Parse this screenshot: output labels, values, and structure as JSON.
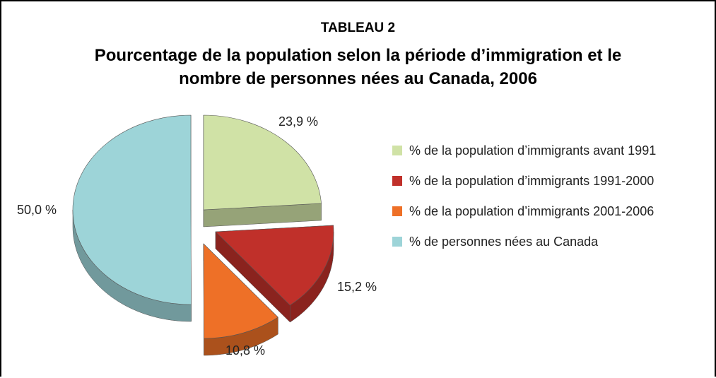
{
  "chart_data": {
    "type": "pie",
    "label": "TABLEAU 2",
    "title": "Pourcentage de la population selon la période d’immigration et le nombre de personnes nées au Canada, 2006",
    "categories": [
      "% de la population d’immigrants avant 1991",
      "% de la population d’immigrants 1991-2000",
      "% de la population d’immigrants 2001-2006",
      "% de personnes nées au Canada"
    ],
    "values": [
      23.9,
      15.2,
      10.8,
      50.0
    ],
    "value_labels": [
      "23,9 %",
      "15,2 %",
      "10,8 %",
      "50,0 %"
    ],
    "colors": [
      "#d0e2a6",
      "#c0302a",
      "#ee7027",
      "#9dd4d8"
    ],
    "legend": "right"
  }
}
